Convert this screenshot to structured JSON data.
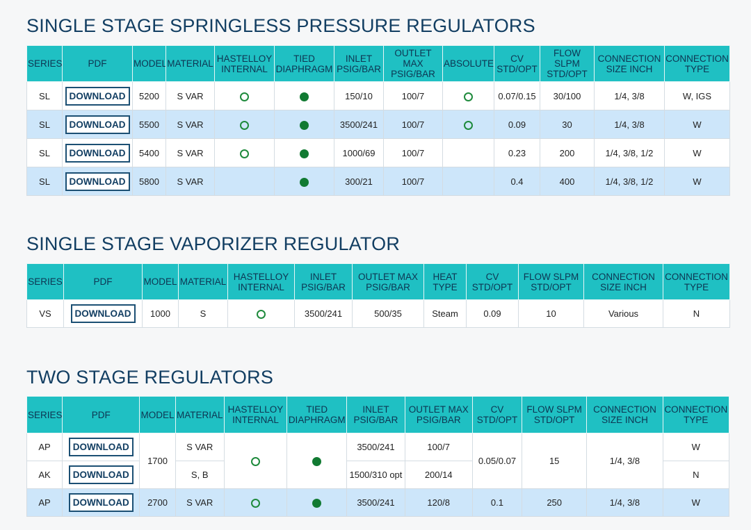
{
  "colors": {
    "title": "#123e62",
    "header_bg": "#1fc0c3",
    "row_alt": "#cde6fa",
    "filled_dot": "#117a32",
    "open_circle": "#1e8a3c"
  },
  "icons": {
    "open": "open-circle-icon",
    "filled": "filled-dot-icon"
  },
  "sections": {
    "springless": {
      "title": "SINGLE STAGE SPRINGLESS PRESSURE REGULATORS",
      "headers": {
        "series": "SERIES",
        "pdf": "PDF",
        "model": "MODEL",
        "material": "MATERIAL",
        "hastelloy": "HASTELLOY INTERNAL",
        "tied": "TIED DIAPHRAGM",
        "inlet": "INLET PSIG/BAR",
        "outlet": "OUTLET MAX PSIG/BAR",
        "absolute": "ABSOLUTE",
        "cv": "CV STD/OPT",
        "flow": "FLOW SLPM STD/OPT",
        "size": "CONNECTION SIZE INCH",
        "type": "CONNECTION TYPE"
      },
      "rows": [
        {
          "series": "SL",
          "download": "DOWNLOAD",
          "model": "5200",
          "material": "S VAR",
          "hastelloy": "open",
          "tied": "filled",
          "inlet": "150/10",
          "outlet": "100/7",
          "absolute": "open",
          "cv": "0.07/0.15",
          "flow": "30/100",
          "size": "1/4, 3/8",
          "type": "W, IGS"
        },
        {
          "series": "SL",
          "download": "DOWNLOAD",
          "model": "5500",
          "material": "S VAR",
          "hastelloy": "open",
          "tied": "filled",
          "inlet": "3500/241",
          "outlet": "100/7",
          "absolute": "open",
          "cv": "0.09",
          "flow": "30",
          "size": "1/4, 3/8",
          "type": "W"
        },
        {
          "series": "SL",
          "download": "DOWNLOAD",
          "model": "5400",
          "material": "S VAR",
          "hastelloy": "open",
          "tied": "filled",
          "inlet": "1000/69",
          "outlet": "100/7",
          "absolute": "none",
          "cv": "0.23",
          "flow": "200",
          "size": "1/4, 3/8, 1/2",
          "type": "W"
        },
        {
          "series": "SL",
          "download": "DOWNLOAD",
          "model": "5800",
          "material": "S VAR",
          "hastelloy": "none",
          "tied": "filled",
          "inlet": "300/21",
          "outlet": "100/7",
          "absolute": "none",
          "cv": "0.4",
          "flow": "400",
          "size": "1/4, 3/8, 1/2",
          "type": "W"
        }
      ]
    },
    "vaporizer": {
      "title": "SINGLE STAGE VAPORIZER REGULATOR",
      "headers": {
        "series": "SERIES",
        "pdf": "PDF",
        "model": "MODEL",
        "material": "MATERIAL",
        "hastelloy": "HASTELLOY INTERNAL",
        "inlet": "INLET PSIG/BAR",
        "outlet": "OUTLET MAX PSIG/BAR",
        "heat": "HEAT TYPE",
        "cv": "CV STD/OPT",
        "flow": "FLOW SLPM STD/OPT",
        "size": "CONNECTION SIZE INCH",
        "type": "CONNECTION TYPE"
      },
      "row": {
        "series": "VS",
        "download": "DOWNLOAD",
        "model": "1000",
        "material": "S",
        "hastelloy": "open",
        "inlet": "3500/241",
        "outlet": "500/35",
        "heat": "Steam",
        "cv": "0.09",
        "flow": "10",
        "size": "Various",
        "type": "N"
      }
    },
    "two_stage": {
      "title": "TWO STAGE REGULATORS",
      "headers": {
        "series": "SERIES",
        "pdf": "PDF",
        "model": "MODEL",
        "material": "MATERIAL",
        "hastelloy": "HASTELLOY INTERNAL",
        "tied": "TIED DIAPHRAGM",
        "inlet": "INLET PSIG/BAR",
        "outlet": "OUTLET MAX PSIG/BAR",
        "cv": "CV STD/OPT",
        "flow": "FLOW SLPM STD/OPT",
        "size": "CONNECTION SIZE INCH",
        "type": "CONNECTION TYPE"
      },
      "group": {
        "model": "1700",
        "hastelloy": "open",
        "tied": "filled",
        "cv": "0.05/0.07",
        "flow": "15",
        "size": "1/4, 3/8",
        "rows": [
          {
            "series": "AP",
            "download": "DOWNLOAD",
            "material": "S VAR",
            "inlet": "3500/241",
            "outlet": "100/7",
            "type": "W"
          },
          {
            "series": "AK",
            "download": "DOWNLOAD",
            "material": "S, B",
            "inlet": "1500/310 opt",
            "outlet": "200/14",
            "type": "N"
          }
        ]
      },
      "last": {
        "series": "AP",
        "download": "DOWNLOAD",
        "model": "2700",
        "material": "S VAR",
        "hastelloy": "open",
        "tied": "filled",
        "inlet": "3500/241",
        "outlet": "120/8",
        "cv": "0.1",
        "flow": "250",
        "size": "1/4, 3/8",
        "type": "W"
      }
    }
  }
}
